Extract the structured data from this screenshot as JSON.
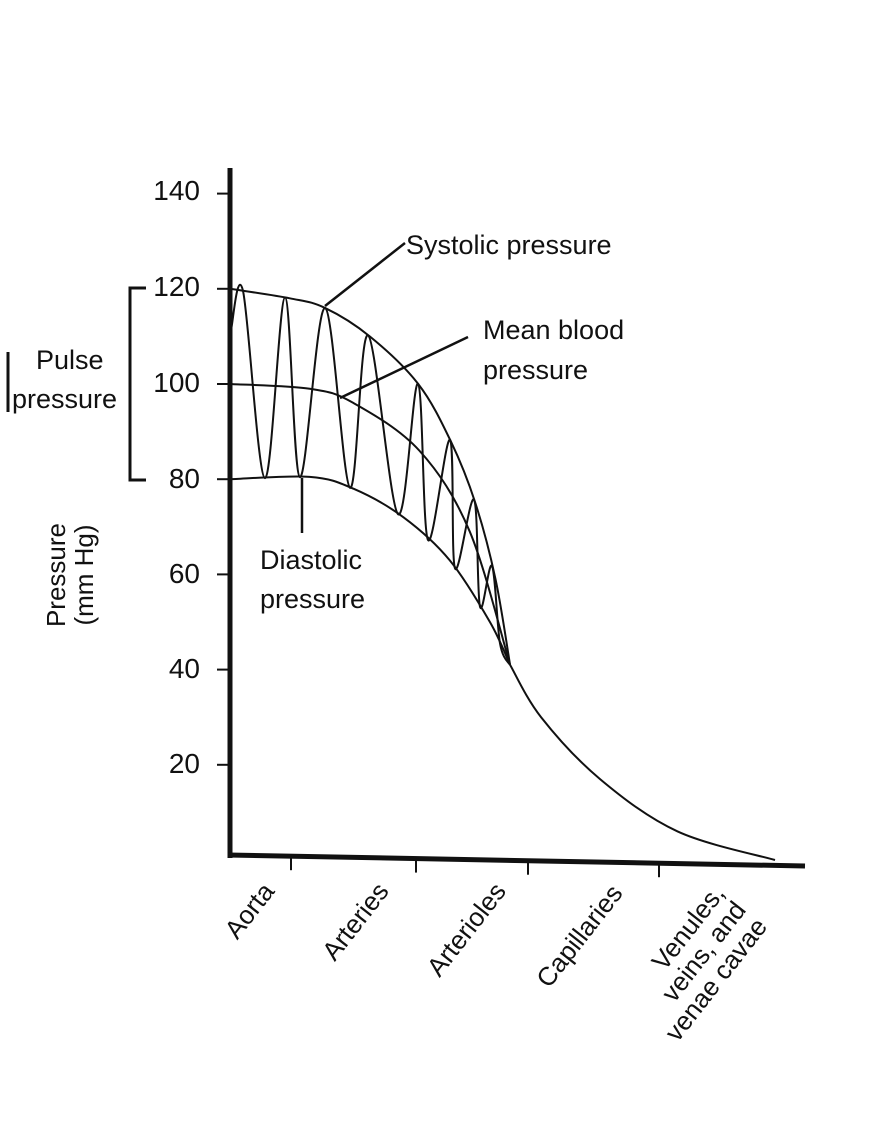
{
  "chart_data": {
    "type": "line",
    "title": "",
    "ylabel": "Pressure (mm Hg)",
    "xlabel": "",
    "ylim": [
      0,
      140
    ],
    "yticks": [
      "20",
      "40",
      "60",
      "80",
      "100",
      "120",
      "140"
    ],
    "categories": [
      "Aorta",
      "Arteries",
      "Arterioles",
      "Capillaries",
      "Venules, veins, and venae cavae"
    ],
    "category_lines": [
      [
        "Aorta"
      ],
      [
        "Arteries"
      ],
      [
        "Arterioles"
      ],
      [
        "Capillaries"
      ],
      [
        "Venules,",
        "veins, and",
        "venae cavae"
      ]
    ],
    "grid": false,
    "series": [
      {
        "name": "Systolic pressure",
        "points": [
          [
            0,
            120
          ],
          [
            0.98,
            118
          ],
          [
            1.27,
            116
          ],
          [
            1.63,
            110
          ],
          [
            2.02,
            100
          ],
          [
            2.31,
            88
          ],
          [
            2.53,
            75
          ],
          [
            2.71,
            59
          ],
          [
            2.84,
            41
          ]
        ]
      },
      {
        "name": "Mean blood pressure",
        "points": [
          [
            0,
            100
          ],
          [
            1.15,
            99
          ],
          [
            1.5,
            96
          ],
          [
            2.03,
            86
          ],
          [
            2.48,
            69
          ],
          [
            2.84,
            41
          ]
        ]
      },
      {
        "name": "Diastolic pressure",
        "points": [
          [
            0,
            80
          ],
          [
            1.15,
            80.5
          ],
          [
            1.5,
            78
          ],
          [
            1.9,
            72
          ],
          [
            2.3,
            63
          ],
          [
            2.66,
            50
          ],
          [
            2.84,
            41
          ]
        ]
      },
      {
        "name": "",
        "points": [
          [
            2.84,
            41
          ],
          [
            3.1,
            30
          ],
          [
            3.55,
            17
          ],
          [
            4.16,
            6
          ],
          [
            5,
            0
          ]
        ]
      }
    ],
    "annotations": {
      "systolic": "Systolic pressure",
      "mean_line1": "Mean blood",
      "mean_line2": "pressure",
      "diastolic_line1": "Diastolic",
      "diastolic_line2": "pressure",
      "pulse_line1": "Pulse",
      "pulse_line2": "pressure",
      "ylabel_line1": "Pressure",
      "ylabel_line2": "(mm Hg)"
    },
    "colors": {
      "ink": "#111111",
      "background": "#ffffff"
    }
  }
}
